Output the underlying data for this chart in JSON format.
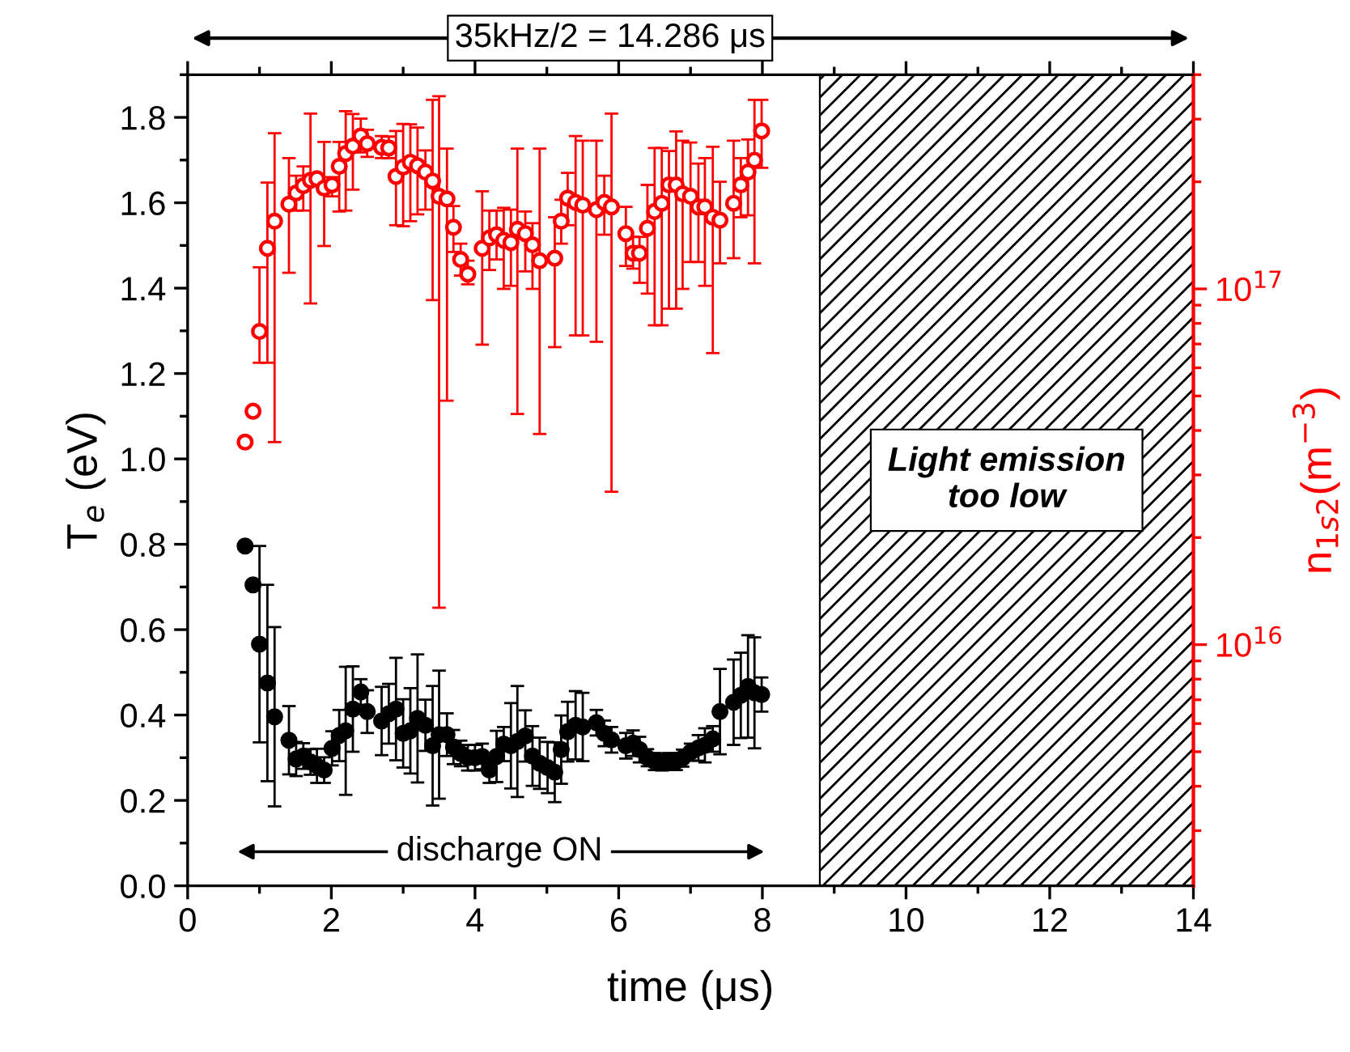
{
  "chart_data": {
    "type": "scatter",
    "xlabel": "time (μs)",
    "ylabel": "T$_{e}$ (eV)",
    "y2label": "n$_{1s2}$(m$^{−3}$)",
    "xlim": [
      0,
      14
    ],
    "xticks": [
      0,
      2,
      4,
      6,
      8,
      10,
      12,
      14
    ],
    "ylim": [
      0,
      1.9
    ],
    "yticks": [
      {
        "value": 0,
        "label": "0.0"
      },
      0.2,
      0.4,
      0.6,
      0.8,
      {
        "value": 1.0,
        "label": "1.0"
      },
      1.2,
      1.4,
      1.6,
      1.8
    ],
    "y2lim": [
      2100000000000000.0,
      4e+17
    ],
    "y2ticks": [
      {
        "value": 1e+16,
        "label": "10$^{16}$"
      },
      {
        "value": 1e+17,
        "label": "10$^{17}$"
      }
    ],
    "log": "y2",
    "grid": false,
    "legend": false,
    "marker": "circle",
    "series": [
      {
        "color": "#ff0000",
        "axis": "y2",
        "x": [
          0.8,
          0.91,
          1.0,
          1.11,
          1.21,
          1.41,
          1.51,
          1.61,
          1.71,
          1.8,
          1.9,
          2.01,
          2.11,
          2.2,
          2.3,
          2.41,
          2.5,
          2.7,
          2.8,
          2.9,
          3.0,
          3.1,
          3.2,
          3.31,
          3.41,
          3.5,
          3.61,
          3.7,
          3.8,
          3.9,
          4.1,
          4.2,
          4.3,
          4.4,
          4.5,
          4.59,
          4.7,
          4.8,
          4.9,
          5.11,
          5.2,
          5.29,
          5.4,
          5.5,
          5.69,
          5.8,
          5.9,
          6.1,
          6.2,
          6.29,
          6.4,
          6.5,
          6.6,
          6.7,
          6.8,
          6.89,
          7.0,
          7.11,
          7.2,
          7.31,
          7.41,
          7.6,
          7.7,
          7.8,
          7.89,
          7.99
        ],
        "values": [
          3.71e+16,
          4.53e+16,
          7.59e+16,
          1.3e+17,
          1.55e+17,
          1.73e+17,
          1.86e+17,
          1.95e+17,
          2.02e+17,
          2.04e+17,
          1.92e+17,
          1.96e+17,
          2.21e+17,
          2.4e+17,
          2.52e+17,
          2.69e+17,
          2.56e+17,
          2.5e+17,
          2.49e+17,
          2.07e+17,
          2.2e+17,
          2.27e+17,
          2.22e+17,
          2.13e+17,
          2.01e+17,
          1.82e+17,
          1.79e+17,
          1.49e+17,
          1.21e+17,
          1.1e+17,
          1.3e+17,
          1.39e+17,
          1.42e+17,
          1.37e+17,
          1.35e+17,
          1.47e+17,
          1.43e+17,
          1.33e+17,
          1.2e+17,
          1.22e+17,
          1.55e+17,
          1.8e+17,
          1.75e+17,
          1.72e+17,
          1.67e+17,
          1.75e+17,
          1.7e+17,
          1.43e+17,
          1.26e+17,
          1.26e+17,
          1.48e+17,
          1.65e+17,
          1.74e+17,
          1.96e+17,
          1.96e+17,
          1.85e+17,
          1.82e+17,
          1.7e+17,
          1.7e+17,
          1.59e+17,
          1.56e+17,
          1.74e+17,
          1.96e+17,
          2.13e+17,
          2.3e+17,
          2.78e+17
        ],
        "errors": [
          null,
          null,
          [
            6.2e+16,
            1.15e+17
          ],
          [
            6.2e+16,
            1.99e+17
          ],
          [
            3.71e+16,
            2.74e+17
          ],
          [
            1.11e+17,
            2.33e+17
          ],
          [
            1.66e+17,
            2.08e+17
          ],
          [
            1.66e+17,
            2.21e+17
          ],
          [
            9.1e+16,
            3.11e+17
          ],
          [
            1.97e+17,
            2.1e+17
          ],
          [
            1.32e+17,
            2.59e+17
          ],
          [
            1.82e+17,
            2.06e+17
          ],
          [
            1.65e+17,
            2.59e+17
          ],
          [
            1.66e+17,
            3.16e+17
          ],
          [
            1.9e+17,
            3.1e+17
          ],
          [
            2.42e+17,
            3.01e+17
          ],
          [
            2.35e+17,
            2.8e+17
          ],
          [
            2.33e+17,
            2.69e+17
          ],
          [
            2.33e+17,
            2.68e+17
          ],
          [
            1.51e+17,
            2.78e+17
          ],
          [
            1.5e+17,
            2.91e+17
          ],
          [
            1.55e+17,
            2.9e+17
          ],
          [
            1.62e+17,
            2.84e+17
          ],
          [
            1.67e+17,
            2.45e+17
          ],
          [
            9.3e+16,
            3.4e+17
          ],
          [
            1.27e+16,
            3.48e+17
          ],
          [
            4.85e+16,
            2.48e+17
          ],
          [
            1.27e+17,
            1.71e+17
          ],
          [
            1.09e+17,
            1.34e+17
          ],
          [
            1.03e+17,
            1.2e+17
          ],
          [
            6.97e+16,
            1.88e+17
          ],
          [
            1.13e+17,
            1.66e+17
          ],
          [
            1.21e+17,
            1.66e+17
          ],
          [
            1e+17,
            1.69e+17
          ],
          [
            1.02e+17,
            1.67e+17
          ],
          [
            4.45e+16,
            2.48e+17
          ],
          [
            1.12e+17,
            1.65e+17
          ],
          [
            1e+17,
            1.53e+17
          ],
          [
            3.91e+16,
            2.48e+17
          ],
          [
            6.86e+16,
            1.59e+17
          ],
          [
            1.34e+17,
            1.78e+17
          ],
          [
            1.51e+17,
            2.12e+17
          ],
          [
            7.4e+16,
            2.69e+17
          ],
          [
            7.4e+16,
            2.61e+17
          ],
          [
            7.1e+16,
            2.61e+17
          ],
          [
            1.42e+17,
            2.08e+17
          ],
          [
            2.69e+16,
            3.11e+17
          ],
          [
            1.16e+17,
            1.7e+17
          ],
          [
            1.14e+17,
            1.4e+17
          ],
          [
            1.04e+17,
            1.4e+17
          ],
          [
            9.7e+16,
            1.96e+17
          ],
          [
            7.9e+16,
            2.49e+17
          ],
          [
            7.9e+16,
            2.49e+17
          ],
          [
            8.8e+16,
            2.44e+17
          ],
          [
            8.8e+16,
            2.77e+17
          ],
          [
            1e+17,
            2.61e+17
          ],
          [
            1.19e+17,
            2.58e+17
          ],
          [
            1.19e+17,
            2.25e+17
          ],
          [
            1.02e+17,
            2.33e+17
          ],
          [
            6.6e+16,
            2.51e+17
          ],
          [
            1.18e+17,
            2e+17
          ],
          [
            1.22e+17,
            2.61e+17
          ],
          [
            1.59e+17,
            2.33e+17
          ],
          [
            1.61e+17,
            2.63e+17
          ],
          [
            1.18e+17,
            3.4e+17
          ],
          [
            2.19e+17,
            3.4e+17
          ]
        ]
      },
      {
        "color": "#000000",
        "x": [
          0.8,
          0.91,
          1.0,
          1.11,
          1.21,
          1.41,
          1.51,
          1.61,
          1.71,
          1.8,
          1.9,
          2.01,
          2.11,
          2.2,
          2.3,
          2.41,
          2.5,
          2.7,
          2.8,
          2.9,
          3.0,
          3.1,
          3.2,
          3.31,
          3.41,
          3.5,
          3.61,
          3.7,
          3.8,
          3.9,
          4.0,
          4.1,
          4.2,
          4.3,
          4.4,
          4.5,
          4.59,
          4.7,
          4.8,
          4.9,
          5.01,
          5.11,
          5.2,
          5.29,
          5.4,
          5.5,
          5.69,
          5.8,
          5.9,
          6.1,
          6.2,
          6.29,
          6.4,
          6.5,
          6.6,
          6.7,
          6.8,
          6.89,
          7.0,
          7.11,
          7.2,
          7.31,
          7.41,
          7.6,
          7.7,
          7.8,
          7.89,
          7.99
        ],
        "values": [
          0.796,
          0.705,
          0.566,
          0.475,
          0.396,
          0.341,
          0.297,
          0.304,
          0.29,
          0.281,
          0.271,
          0.322,
          0.352,
          0.363,
          0.414,
          0.454,
          0.408,
          0.386,
          0.403,
          0.414,
          0.357,
          0.363,
          0.392,
          0.376,
          0.328,
          0.354,
          0.354,
          0.325,
          0.31,
          0.3,
          0.3,
          0.303,
          0.271,
          0.303,
          0.332,
          0.328,
          0.338,
          0.351,
          0.304,
          0.287,
          0.277,
          0.266,
          0.319,
          0.361,
          0.376,
          0.372,
          0.382,
          0.357,
          0.342,
          0.328,
          0.334,
          0.319,
          0.3,
          0.291,
          0.29,
          0.291,
          0.291,
          0.299,
          0.313,
          0.323,
          0.329,
          0.344,
          0.408,
          0.43,
          0.446,
          0.467,
          0.452,
          0.448
        ],
        "errors": [
          null,
          null,
          0.23,
          0.23,
          0.21,
          0.08,
          0.04,
          0.03,
          0.03,
          0.04,
          0.03,
          0.04,
          0.06,
          0.15,
          0.1,
          0.03,
          0.05,
          0.08,
          0.07,
          0.12,
          0.08,
          0.1,
          0.15,
          0.06,
          0.14,
          0.15,
          0.05,
          0.04,
          0.03,
          0.03,
          0.03,
          0.03,
          0.03,
          0.06,
          0.04,
          0.1,
          0.13,
          0.06,
          0.07,
          0.06,
          0.06,
          0.07,
          0.08,
          0.07,
          0.08,
          0.08,
          0.03,
          0.03,
          0.03,
          0.03,
          0.03,
          0.03,
          0.02,
          0.02,
          0.02,
          0.02,
          0.02,
          0.02,
          0.02,
          0.03,
          0.04,
          0.03,
          0.1,
          0.1,
          0.1,
          0.12,
          0.13,
          0.04
        ]
      }
    ],
    "bands": [
      {
        "axis": "x",
        "from": 8.8,
        "to": 14,
        "label": "Light emission too low"
      }
    ],
    "annotations": [
      "35kHz/2 = 14.286 μs",
      "discharge ON"
    ]
  }
}
